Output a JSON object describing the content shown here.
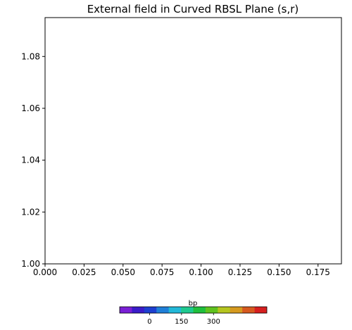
{
  "chart_data": {
    "type": "heatmap",
    "title": "External field in Curved RBSL Plane (s,r)",
    "xlabel": "",
    "ylabel": "",
    "xlim": [
      0.0,
      0.19
    ],
    "ylim": [
      1.0,
      1.095
    ],
    "x_ticks": [
      "0.000",
      "0.025",
      "0.050",
      "0.075",
      "0.100",
      "0.125",
      "0.150",
      "0.175"
    ],
    "x_tick_values": [
      0.0,
      0.025,
      0.05,
      0.075,
      0.1,
      0.125,
      0.15,
      0.175
    ],
    "y_ticks": [
      "1.00",
      "1.02",
      "1.04",
      "1.06",
      "1.08"
    ],
    "y_tick_values": [
      1.0,
      1.02,
      1.04,
      1.06,
      1.08
    ],
    "grid": false,
    "colorbar": {
      "label": "bp",
      "orientation": "horizontal",
      "range": [
        -140,
        550
      ],
      "ticks": [
        "0",
        "150",
        "300"
      ],
      "tick_values": [
        0,
        150,
        300
      ],
      "colors": [
        "#7a1fd6",
        "#3a1cc9",
        "#1d3fd0",
        "#1f7fd8",
        "#22b8d8",
        "#1ec98f",
        "#1fbf3c",
        "#5fc21f",
        "#b5c51f",
        "#d69a1f",
        "#d6591f",
        "#d61f1f"
      ]
    }
  }
}
